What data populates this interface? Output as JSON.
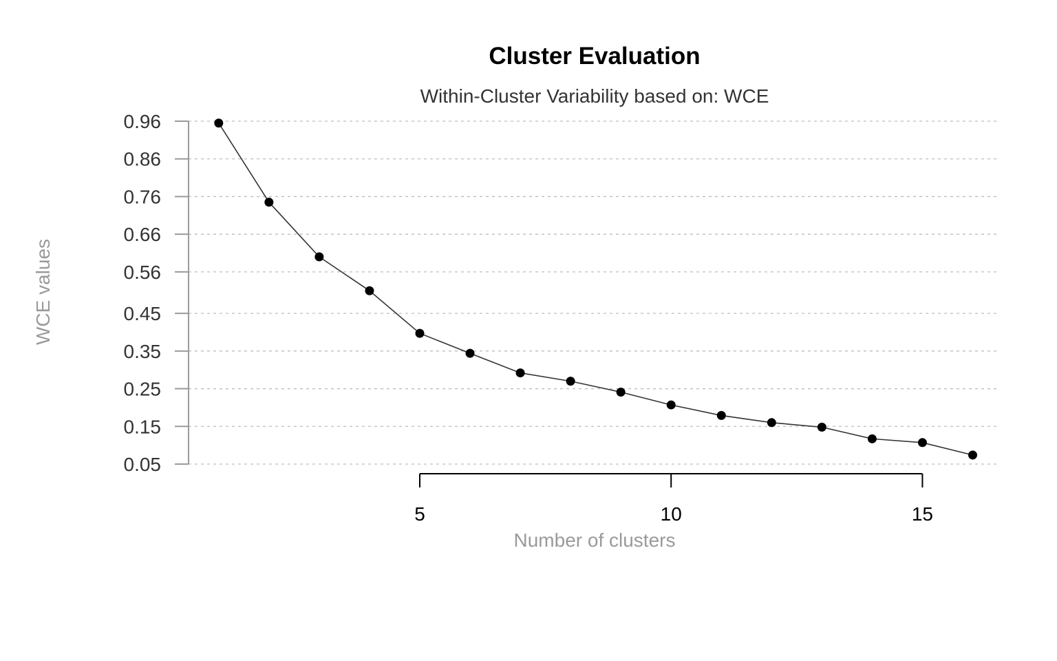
{
  "chart_data": {
    "type": "line",
    "title": "Cluster Evaluation",
    "subtitle": "Within-Cluster Variability based on: WCE",
    "xlabel": "Number of clusters",
    "ylabel": "WCE values",
    "x": [
      1,
      2,
      3,
      4,
      5,
      6,
      7,
      8,
      9,
      10,
      11,
      12,
      13,
      14,
      15,
      16
    ],
    "series": [
      {
        "values": [
          0.955,
          0.745,
          0.6,
          0.51,
          0.397,
          0.344,
          0.292,
          0.27,
          0.241,
          0.207,
          0.179,
          0.16,
          0.148,
          0.117,
          0.107,
          0.074
        ]
      }
    ],
    "xlim": [
      0.4,
      16.5
    ],
    "ylim": [
      0.05,
      0.96
    ],
    "x_ticks": [
      5,
      10,
      15
    ],
    "x_tick_labels": [
      "5",
      "10",
      "15"
    ],
    "y_ticks": [
      0.05,
      0.15,
      0.25,
      0.35,
      0.45,
      0.56,
      0.66,
      0.76,
      0.86,
      0.96
    ],
    "y_tick_labels": [
      "0.05",
      "0.15",
      "0.25",
      "0.35",
      "0.45",
      "0.56",
      "0.66",
      "0.76",
      "0.86",
      "0.96"
    ],
    "grid": true,
    "legend": "none",
    "colors": {
      "line": "#333333",
      "points": "#000000",
      "grid": "#bdbdbd",
      "axis_title": "#9a9a9a"
    }
  }
}
